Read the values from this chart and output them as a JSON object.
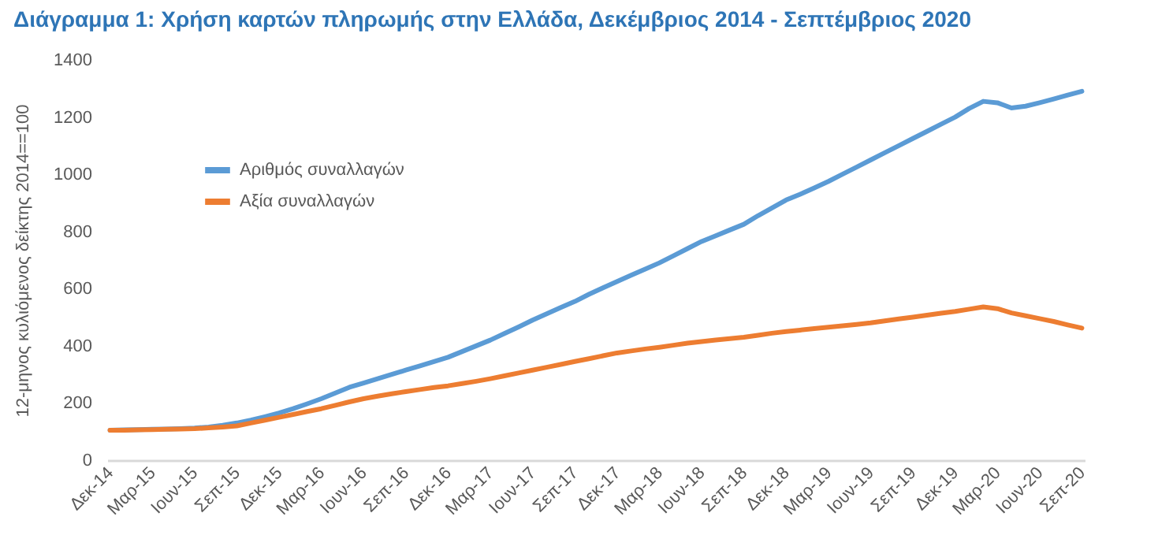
{
  "chart_data": {
    "type": "line",
    "title": "Διάγραμμα 1: Χρήση καρτών πληρωμής στην Ελλάδα, Δεκέμβριος 2014 - Σεπτέμβριος 2020",
    "ylabel": "12-μηνος κυλιόμενος δείκτης 2014==100",
    "categories": [
      "Δεκ-14",
      null,
      null,
      "Μαρ-15",
      null,
      null,
      "Ιουν-15",
      null,
      null,
      "Σεπ-15",
      null,
      null,
      "Δεκ-15",
      null,
      null,
      "Μαρ-16",
      null,
      null,
      "Ιουν-16",
      null,
      null,
      "Σεπ-16",
      null,
      null,
      "Δεκ-16",
      null,
      null,
      "Μαρ-17",
      null,
      null,
      "Ιουν-17",
      null,
      null,
      "Σεπ-17",
      null,
      null,
      "Δεκ-17",
      null,
      null,
      "Μαρ-18",
      null,
      null,
      "Ιουν-18",
      null,
      null,
      "Σεπ-18",
      null,
      null,
      "Δεκ-18",
      null,
      null,
      "Μαρ-19",
      null,
      null,
      "Ιουν-19",
      null,
      null,
      "Σεπ-19",
      null,
      null,
      "Δεκ-19",
      null,
      null,
      "Μαρ-20",
      null,
      null,
      "Ιουν-20",
      null,
      null,
      "Σεπ-20"
    ],
    "series": [
      {
        "name": "Αριθμός συναλλαγών",
        "color": "#5b9bd5",
        "values": [
          105,
          106,
          107,
          108,
          109,
          110,
          112,
          116,
          122,
          130,
          140,
          152,
          165,
          180,
          197,
          215,
          235,
          255,
          270,
          285,
          300,
          315,
          330,
          345,
          360,
          380,
          400,
          420,
          443,
          466,
          490,
          512,
          534,
          555,
          580,
          603,
          625,
          647,
          668,
          690,
          715,
          740,
          765,
          785,
          805,
          825,
          855,
          882,
          910,
          930,
          952,
          975,
          1000,
          1025,
          1050,
          1075,
          1100,
          1125,
          1150,
          1175,
          1200,
          1230,
          1255,
          1250,
          1232,
          1238,
          1250,
          1263,
          1277,
          1290
        ]
      },
      {
        "name": "Αξία συναλλαγών",
        "color": "#ed7d31",
        "values": [
          105,
          105,
          106,
          107,
          108,
          109,
          110,
          113,
          116,
          120,
          130,
          140,
          150,
          160,
          170,
          180,
          192,
          204,
          215,
          224,
          232,
          240,
          247,
          254,
          260,
          268,
          276,
          285,
          295,
          305,
          315,
          325,
          335,
          345,
          355,
          365,
          375,
          382,
          389,
          395,
          402,
          409,
          415,
          420,
          425,
          430,
          437,
          444,
          450,
          455,
          460,
          465,
          470,
          475,
          480,
          487,
          494,
          500,
          507,
          514,
          520,
          528,
          536,
          530,
          515,
          505,
          495,
          485,
          473,
          462
        ]
      }
    ],
    "ylim": [
      0,
      1400
    ],
    "yticks": [
      0,
      200,
      400,
      600,
      800,
      1000,
      1200,
      1400
    ],
    "legend": "top left",
    "grid": false,
    "marker": "none",
    "line_style": "solid"
  }
}
